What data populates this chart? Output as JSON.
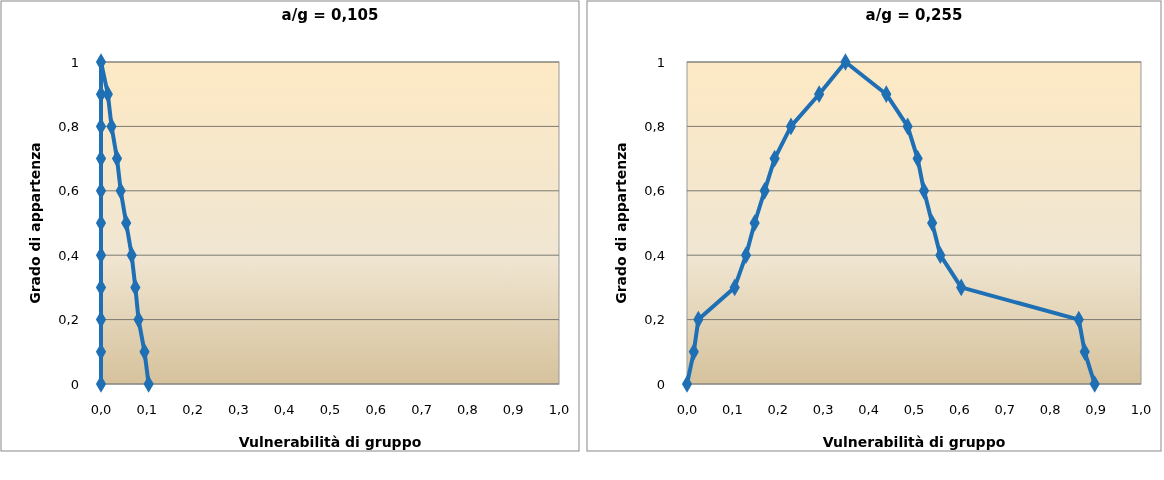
{
  "chart_data": [
    {
      "type": "line",
      "title": "a/g = 0,105",
      "xlabel": "Vulnerabilità di gruppo",
      "ylabel": "Grado di appartenza",
      "xlim": [
        0,
        1
      ],
      "ylim": [
        0,
        1
      ],
      "xticks": [
        {
          "value": 0,
          "label": "0,0"
        },
        {
          "value": 0.1,
          "label": "0,1"
        },
        {
          "value": 0.2,
          "label": "0,2"
        },
        {
          "value": 0.3,
          "label": "0,3"
        },
        {
          "value": 0.4,
          "label": "0,4"
        },
        {
          "value": 0.5,
          "label": "0,5"
        },
        {
          "value": 0.6,
          "label": "0,6"
        },
        {
          "value": 0.7,
          "label": "0,7"
        },
        {
          "value": 0.8,
          "label": "0,8"
        },
        {
          "value": 0.9,
          "label": "0,9"
        },
        {
          "value": 1,
          "label": "1,0"
        }
      ],
      "yticks": [
        {
          "value": 0,
          "label": "0"
        },
        {
          "value": 0.2,
          "label": "0,2"
        },
        {
          "value": 0.4,
          "label": "0,4"
        },
        {
          "value": 0.6,
          "label": "0,6"
        },
        {
          "value": 0.8,
          "label": "0,8"
        },
        {
          "value": 1,
          "label": "1"
        }
      ],
      "grid": "y",
      "marker": "diamond",
      "line_style": "solid",
      "series": [
        {
          "color": "#1f6fb5",
          "x": [
            0,
            0,
            0,
            0,
            0,
            0,
            0,
            0,
            0,
            0,
            0,
            0.015,
            0.023,
            0.035,
            0.043,
            0.055,
            0.067,
            0.075,
            0.082,
            0.095,
            0.104
          ],
          "values": [
            0,
            0.1,
            0.2,
            0.3,
            0.4,
            0.5,
            0.6,
            0.7,
            0.8,
            0.9,
            1,
            0.9,
            0.8,
            0.7,
            0.6,
            0.5,
            0.4,
            0.3,
            0.2,
            0.1,
            0
          ]
        }
      ]
    },
    {
      "type": "line",
      "title": "a/g = 0,255",
      "xlabel": "Vulnerabilità di gruppo",
      "ylabel": "Grado di appartenza",
      "xlim": [
        0,
        1
      ],
      "ylim": [
        0,
        1
      ],
      "xticks": [
        {
          "value": 0,
          "label": "0,0"
        },
        {
          "value": 0.1,
          "label": "0,1"
        },
        {
          "value": 0.2,
          "label": "0,2"
        },
        {
          "value": 0.3,
          "label": "0,3"
        },
        {
          "value": 0.4,
          "label": "0,4"
        },
        {
          "value": 0.5,
          "label": "0,5"
        },
        {
          "value": 0.6,
          "label": "0,6"
        },
        {
          "value": 0.7,
          "label": "0,7"
        },
        {
          "value": 0.8,
          "label": "0,8"
        },
        {
          "value": 0.9,
          "label": "0,9"
        },
        {
          "value": 1,
          "label": "1,0"
        }
      ],
      "yticks": [
        {
          "value": 0,
          "label": "0"
        },
        {
          "value": 0.2,
          "label": "0,2"
        },
        {
          "value": 0.4,
          "label": "0,4"
        },
        {
          "value": 0.6,
          "label": "0,6"
        },
        {
          "value": 0.8,
          "label": "0,8"
        },
        {
          "value": 1,
          "label": "1"
        }
      ],
      "grid": "y",
      "marker": "diamond",
      "line_style": "solid",
      "series": [
        {
          "color": "#1f6fb5",
          "x": [
            0,
            0.015,
            0.025,
            0.105,
            0.13,
            0.149,
            0.171,
            0.193,
            0.229,
            0.291,
            0.349,
            0.439,
            0.486,
            0.508,
            0.522,
            0.54,
            0.558,
            0.604,
            0.863,
            0.876,
            0.898
          ],
          "values": [
            0,
            0.1,
            0.2,
            0.3,
            0.4,
            0.5,
            0.6,
            0.7,
            0.8,
            0.9,
            1,
            0.9,
            0.8,
            0.7,
            0.6,
            0.5,
            0.4,
            0.3,
            0.2,
            0.1,
            0
          ]
        }
      ]
    }
  ]
}
